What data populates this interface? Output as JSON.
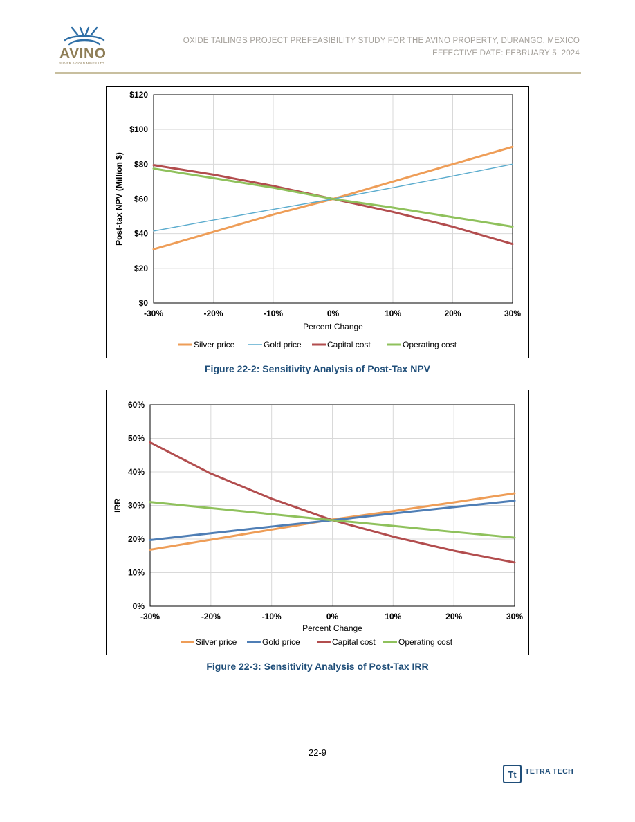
{
  "header": {
    "logo_text": "AVINO",
    "logo_subtext": "SILVER & GOLD MINES LTD.",
    "title_line1": "OXIDE TAILINGS PROJECT PREFEASIBILITY STUDY FOR THE AVINO PROPERTY, DURANGO, MEXICO",
    "title_line2": "EFFECTIVE DATE: FEBRUARY 5, 2024",
    "rule_color": "#c8bf9f"
  },
  "colors": {
    "silver": "#ee9d57",
    "gold_npv": "#5aabcd",
    "gold_irr": "#4f7eb5",
    "capital": "#b24d4e",
    "operating": "#8fc15c",
    "caption": "#1f4e79"
  },
  "chart_data": [
    {
      "type": "line",
      "caption": "Figure 22-2: Sensitivity Analysis of Post-Tax NPV",
      "xlabel": "Percent Change",
      "ylabel": "Post-tax NPV (Million $)",
      "x": [
        -30,
        -20,
        -10,
        0,
        10,
        20,
        30
      ],
      "x_tick_labels": [
        "-30%",
        "-20%",
        "-10%",
        "0%",
        "10%",
        "20%",
        "30%"
      ],
      "y_tick_values": [
        0,
        20,
        40,
        60,
        80,
        100,
        120
      ],
      "y_tick_labels": [
        "$0",
        "$20",
        "$40",
        "$60",
        "$80",
        "$100",
        "$120"
      ],
      "xlim": [
        -30,
        30
      ],
      "ylim": [
        0,
        120
      ],
      "grid": true,
      "legend": "bottom",
      "series": [
        {
          "name": "Silver price",
          "color_key": "silver",
          "values": [
            31,
            41,
            51,
            60,
            70,
            80,
            90
          ]
        },
        {
          "name": "Gold price",
          "color_key": "gold_npv",
          "values": [
            41.5,
            47.8,
            54,
            60,
            66.5,
            73.2,
            80
          ]
        },
        {
          "name": "Capital cost",
          "color_key": "capital",
          "values": [
            79.5,
            74,
            67.5,
            60,
            52.5,
            44,
            34
          ]
        },
        {
          "name": "Operating cost",
          "color_key": "operating",
          "values": [
            77.5,
            72,
            66.5,
            60,
            55,
            49.5,
            44
          ]
        }
      ]
    },
    {
      "type": "line",
      "caption": "Figure 22-3: Sensitivity Analysis of Post-Tax IRR",
      "xlabel": "Percent Change",
      "ylabel": "IRR",
      "x": [
        -30,
        -20,
        -10,
        0,
        10,
        20,
        30
      ],
      "x_tick_labels": [
        "-30%",
        "-20%",
        "-10%",
        "0%",
        "10%",
        "20%",
        "30%"
      ],
      "y_tick_values": [
        0,
        10,
        20,
        30,
        40,
        50,
        60
      ],
      "y_tick_labels": [
        "0%",
        "10%",
        "20%",
        "30%",
        "40%",
        "50%",
        "60%"
      ],
      "xlim": [
        -30,
        30
      ],
      "ylim": [
        0,
        60
      ],
      "grid": true,
      "legend": "bottom",
      "series": [
        {
          "name": "Silver price",
          "color_key": "silver",
          "values": [
            16.8,
            19.8,
            22.8,
            25.8,
            28.3,
            30.9,
            33.6
          ]
        },
        {
          "name": "Gold price",
          "color_key": "gold_irr",
          "values": [
            19.7,
            21.7,
            23.7,
            25.6,
            27.6,
            29.5,
            31.4
          ]
        },
        {
          "name": "Capital cost",
          "color_key": "capital",
          "values": [
            48.8,
            39.5,
            32,
            25.6,
            20.7,
            16.5,
            13
          ]
        },
        {
          "name": "Operating cost",
          "color_key": "operating",
          "values": [
            31,
            29.2,
            27.4,
            25.6,
            23.9,
            22.1,
            20.4
          ]
        }
      ]
    }
  ],
  "footer": {
    "page_number": "22-9",
    "company": "TETRA TECH",
    "company_logo_text": "Tt"
  }
}
